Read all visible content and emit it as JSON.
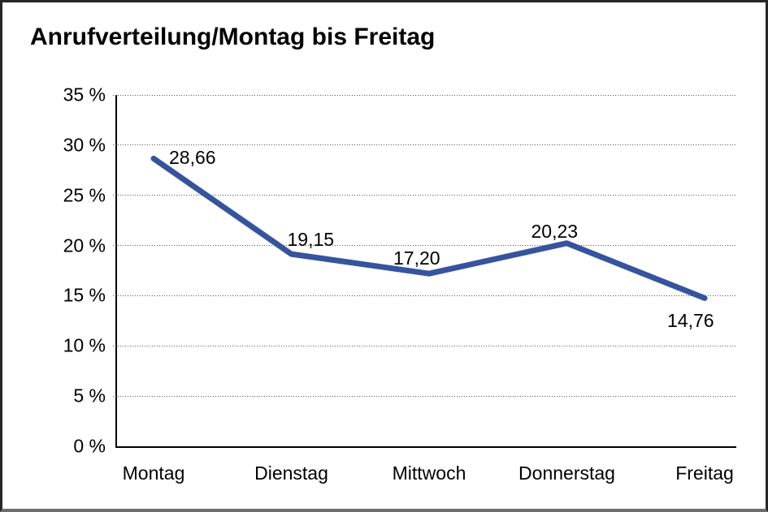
{
  "title": "Anrufverteilung/Montag bis Freitag",
  "colors": {
    "line": "#36549e",
    "grid_dots": "#555555",
    "axis": "#000000",
    "frame": "#262626",
    "frame_bottom": "#6e6e6e",
    "background": "#ffffff",
    "text": "#000000"
  },
  "chart_data": {
    "type": "line",
    "title": "Anrufverteilung/Montag bis Freitag",
    "categories": [
      "Montag",
      "Dienstag",
      "Mittwoch",
      "Donnerstag",
      "Freitag"
    ],
    "values": [
      28.66,
      19.15,
      17.2,
      20.23,
      14.76
    ],
    "point_labels": [
      "28,66",
      "19,15",
      "17,20",
      "20,23",
      "14,76"
    ],
    "xlabel": "",
    "ylabel": "",
    "ylim": [
      0,
      35
    ],
    "y_ticks": [
      35,
      30,
      25,
      20,
      15,
      10,
      5,
      0
    ],
    "y_tick_labels": [
      "35 %",
      "30 %",
      "25 %",
      "20 %",
      "15 %",
      "10 %",
      "5 %",
      "0 %"
    ],
    "grid": "horizontal dotted lines at each 5% tick (not at 0%)",
    "legend": "none",
    "line_color": "#36549e",
    "line_width": 7
  }
}
